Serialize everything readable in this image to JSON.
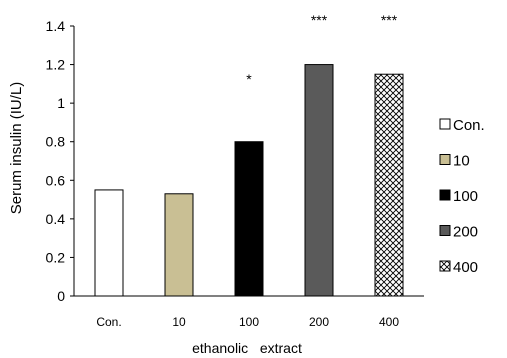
{
  "chart_data": {
    "type": "bar",
    "ylabel": "Serum insulin (IU/L)",
    "xlabel": "ethanolic   extract",
    "categories": [
      "Con.",
      "10",
      "100",
      "200",
      "400"
    ],
    "values": [
      0.55,
      0.53,
      0.8,
      1.2,
      1.15
    ],
    "ylim": [
      0,
      1.4
    ],
    "yticks": [
      "0",
      "0.2",
      "0.4",
      "0.6",
      "0.8",
      "1",
      "1.2",
      "1.4"
    ],
    "grid": false,
    "legend_position": "right",
    "annotations": [
      "",
      "",
      "*",
      "***",
      "***"
    ],
    "series_styles": [
      {
        "label": "Con.",
        "fill": "#ffffff",
        "pattern": "none"
      },
      {
        "label": "10",
        "fill": "#c9bf94",
        "pattern": "none"
      },
      {
        "label": "100",
        "fill": "#000000",
        "pattern": "none"
      },
      {
        "label": "200",
        "fill": "#5a5a5a",
        "pattern": "none"
      },
      {
        "label": "400",
        "fill": "#ffffff",
        "pattern": "crosshatch"
      }
    ]
  }
}
